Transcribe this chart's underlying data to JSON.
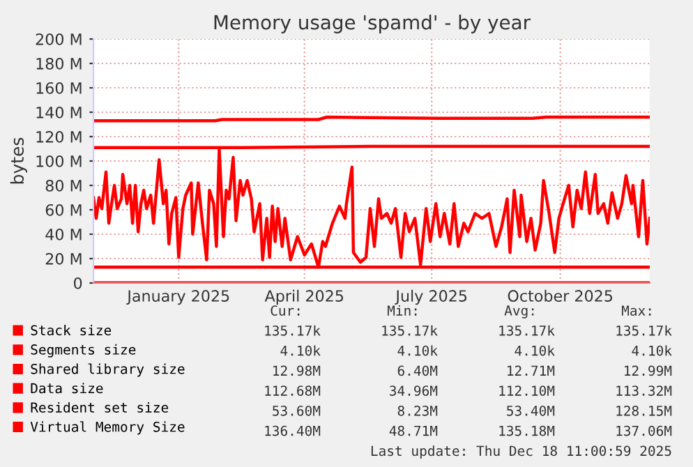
{
  "chart_data": {
    "type": "line",
    "title": "Memory usage 'spamd' - by year",
    "ylabel": "bytes",
    "xlim": [
      "2024-11-15",
      "2025-12-18"
    ],
    "xticks": [
      {
        "value": "2025-01-15",
        "label": "January 2025"
      },
      {
        "value": "2025-04-15",
        "label": "April 2025"
      },
      {
        "value": "2025-07-15",
        "label": "July 2025"
      },
      {
        "value": "2025-10-15",
        "label": "October 2025"
      }
    ],
    "ylim": [
      0,
      200
    ],
    "yticks": [
      0,
      {
        "value": 20,
        "label": "20 M"
      },
      {
        "value": 40,
        "label": "40 M"
      },
      {
        "value": 60,
        "label": "60 M"
      },
      {
        "value": 80,
        "label": "80 M"
      },
      {
        "value": 100,
        "label": "100 M"
      },
      {
        "value": 120,
        "label": "120 M"
      },
      {
        "value": 140,
        "label": "140 M"
      },
      {
        "value": 160,
        "label": "160 M"
      },
      {
        "value": 180,
        "label": "180 M"
      },
      {
        "value": 200,
        "label": "200 M"
      }
    ],
    "grid": true,
    "legend": "bottom",
    "series": [
      {
        "name": "Stack size",
        "color": "#ff0000",
        "x": [
          "2024-11-15",
          "2025-12-18"
        ],
        "values": [
          0,
          0
        ]
      },
      {
        "name": "Segments size",
        "color": "#ff0000",
        "x": [
          "2024-11-15",
          "2025-12-18"
        ],
        "values": [
          0,
          0
        ]
      },
      {
        "name": "Shared library size",
        "color": "#ff0000",
        "x": [
          "2024-11-15",
          "2025-12-18"
        ],
        "values": [
          13,
          13
        ]
      },
      {
        "name": "Data size",
        "color": "#ff0000",
        "x": [
          "2024-11-15",
          "2025-03-01",
          "2025-06-01",
          "2025-12-18"
        ],
        "values": [
          111,
          111,
          112,
          112
        ]
      },
      {
        "name": "Resident set size",
        "color": "#ff0000",
        "x": [
          "2024-11-15",
          "2024-11-17",
          "2024-11-19",
          "2024-11-21",
          "2024-11-24",
          "2024-11-26",
          "2024-11-28",
          "2024-11-30",
          "2024-12-02",
          "2024-12-05",
          "2024-12-06",
          "2024-12-09",
          "2024-12-11",
          "2024-12-13",
          "2024-12-15",
          "2024-12-17",
          "2024-12-19",
          "2024-12-21",
          "2024-12-23",
          "2024-12-26",
          "2024-12-28",
          "2025-01-01",
          "2025-01-04",
          "2025-01-06",
          "2025-01-08",
          "2025-01-10",
          "2025-01-13",
          "2025-01-15",
          "2025-01-18",
          "2025-01-20",
          "2025-01-24",
          "2025-01-25",
          "2025-01-29",
          "2025-02-01",
          "2025-02-04",
          "2025-02-06",
          "2025-02-09",
          "2025-02-11",
          "2025-02-13",
          "2025-02-16",
          "2025-02-18",
          "2025-02-20",
          "2025-02-23",
          "2025-02-25",
          "2025-02-28",
          "2025-03-02",
          "2025-03-05",
          "2025-03-08",
          "2025-03-10",
          "2025-03-14",
          "2025-03-16",
          "2025-03-19",
          "2025-03-21",
          "2025-03-23",
          "2025-03-25",
          "2025-03-27",
          "2025-03-30",
          "2025-04-01",
          "2025-04-05",
          "2025-04-10",
          "2025-04-15",
          "2025-04-20",
          "2025-04-25",
          "2025-04-28",
          "2025-04-30",
          "2025-05-05",
          "2025-05-10",
          "2025-05-14",
          "2025-05-15",
          "2025-05-19",
          "2025-05-20",
          "2025-05-25",
          "2025-05-29",
          "2025-06-01",
          "2025-06-04",
          "2025-06-07",
          "2025-06-09",
          "2025-06-13",
          "2025-06-16",
          "2025-06-19",
          "2025-06-23",
          "2025-06-26",
          "2025-06-29",
          "2025-07-03",
          "2025-07-07",
          "2025-07-11",
          "2025-07-14",
          "2025-07-18",
          "2025-07-21",
          "2025-07-24",
          "2025-07-28",
          "2025-07-31",
          "2025-08-03",
          "2025-08-07",
          "2025-08-10",
          "2025-08-15",
          "2025-08-20",
          "2025-08-25",
          "2025-08-30",
          "2025-09-03",
          "2025-09-07",
          "2025-09-09",
          "2025-09-12",
          "2025-09-16",
          "2025-09-17",
          "2025-09-21",
          "2025-09-24",
          "2025-09-27",
          "2025-10-01",
          "2025-10-03",
          "2025-10-07",
          "2025-10-11",
          "2025-10-14",
          "2025-10-17",
          "2025-10-21",
          "2025-10-24",
          "2025-10-27",
          "2025-10-30",
          "2025-11-02",
          "2025-11-05",
          "2025-11-09",
          "2025-11-11",
          "2025-11-15",
          "2025-11-18",
          "2025-11-21",
          "2025-11-25",
          "2025-11-28",
          "2025-12-01",
          "2025-12-05",
          "2025-12-06",
          "2025-12-10",
          "2025-12-13",
          "2025-12-16",
          "2025-12-18"
        ],
        "values": [
          70,
          53,
          70,
          61,
          91,
          49,
          65,
          80,
          61,
          69,
          89,
          65,
          80,
          49,
          80,
          42,
          65,
          76,
          61,
          72,
          49,
          101,
          65,
          76,
          32,
          57,
          70,
          21,
          61,
          72,
          82,
          40,
          82,
          49,
          19,
          76,
          65,
          30,
          110,
          38,
          76,
          69,
          103,
          51,
          84,
          72,
          84,
          69,
          42,
          65,
          19,
          53,
          21,
          63,
          34,
          61,
          30,
          53,
          19,
          38,
          23,
          32,
          13,
          34,
          30,
          49,
          63,
          53,
          65,
          95,
          25,
          17,
          21,
          61,
          30,
          69,
          53,
          57,
          49,
          61,
          21,
          57,
          42,
          53,
          15,
          61,
          34,
          65,
          38,
          57,
          32,
          65,
          30,
          49,
          42,
          57,
          53,
          57,
          30,
          46,
          69,
          25,
          76,
          38,
          72,
          34,
          53,
          27,
          49,
          84,
          57,
          25,
          53,
          65,
          80,
          46,
          76,
          61,
          91,
          57,
          89,
          57,
          65,
          49,
          74,
          53,
          65,
          88,
          65,
          80,
          38,
          84,
          32,
          53
        ]
      },
      {
        "name": "Virtual Memory Size",
        "color": "#ff0000",
        "x": [
          "2024-11-15",
          "2025-02-10",
          "2025-02-15",
          "2025-04-25",
          "2025-05-01",
          "2025-07-20",
          "2025-09-25",
          "2025-10-05",
          "2025-11-15",
          "2025-12-18"
        ],
        "values": [
          133,
          133,
          134,
          134,
          136,
          135,
          135,
          136,
          136,
          136
        ]
      }
    ],
    "annotations": [
      "Cur:",
      "Min:",
      "Avg:",
      "Max:",
      "135.17k",
      "135.17k",
      "135.17k",
      "135.17k",
      "4.10k",
      "4.10k",
      "4.10k",
      "4.10k",
      "12.98M",
      "6.40M",
      "12.71M",
      "12.99M",
      "112.68M",
      "34.96M",
      "112.10M",
      "113.32M",
      "53.60M",
      "8.23M",
      "53.40M",
      "128.15M",
      "136.40M",
      "48.71M",
      "135.18M",
      "137.06M",
      "Last update: Thu Dec 18 11:00:59 2025"
    ]
  }
}
